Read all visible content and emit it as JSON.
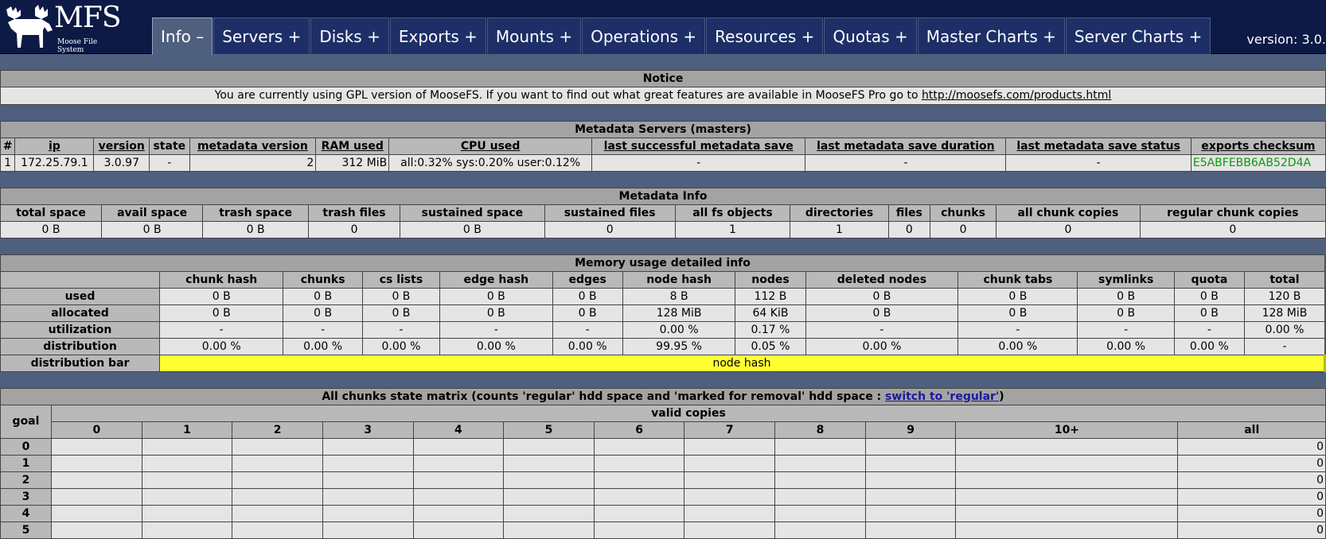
{
  "logo": {
    "text": "MFS",
    "subtitle": "Moose File System"
  },
  "tabs": [
    "Info –",
    "Servers +",
    "Disks +",
    "Exports +",
    "Mounts +",
    "Operations +",
    "Resources +",
    "Quotas +",
    "Master Charts +",
    "Server Charts +"
  ],
  "version_label": "version: 3.0.",
  "notice": {
    "title": "Notice",
    "text": "You are currently using GPL version of MooseFS. If you want to find out what great features are available in MooseFS Pro go to ",
    "link": "http://moosefs.com/products.html"
  },
  "masters": {
    "title": "Metadata Servers (masters)",
    "headers": [
      "#",
      "ip",
      "version",
      "state",
      "metadata version",
      "RAM used",
      "CPU used",
      "last successful metadata save",
      "last metadata save duration",
      "last metadata save status",
      "exports checksum"
    ],
    "row": [
      "1",
      "172.25.79.1",
      "3.0.97",
      "-",
      "2",
      "312 MiB",
      "all:0.32% sys:0.20% user:0.12%",
      "-",
      "-",
      "-",
      "E5ABFEBB6AB52D4A"
    ]
  },
  "metainfo": {
    "title": "Metadata Info",
    "headers": [
      "total space",
      "avail space",
      "trash space",
      "trash files",
      "sustained space",
      "sustained files",
      "all fs objects",
      "directories",
      "files",
      "chunks",
      "all chunk copies",
      "regular chunk copies"
    ],
    "row": [
      "0 B",
      "0 B",
      "0 B",
      "0",
      "0 B",
      "0",
      "1",
      "1",
      "0",
      "0",
      "0",
      "0"
    ]
  },
  "memory": {
    "title": "Memory usage detailed info",
    "headers": [
      "chunk hash",
      "chunks",
      "cs lists",
      "edge hash",
      "edges",
      "node hash",
      "nodes",
      "deleted nodes",
      "chunk tabs",
      "symlinks",
      "quota",
      "total"
    ],
    "rows": [
      {
        "label": "used",
        "cells": [
          "0 B",
          "0 B",
          "0 B",
          "0 B",
          "0 B",
          "8 B",
          "112 B",
          "0 B",
          "0 B",
          "0 B",
          "0 B",
          "120 B"
        ]
      },
      {
        "label": "allocated",
        "cells": [
          "0 B",
          "0 B",
          "0 B",
          "0 B",
          "0 B",
          "128 MiB",
          "64 KiB",
          "0 B",
          "0 B",
          "0 B",
          "0 B",
          "128 MiB"
        ]
      },
      {
        "label": "utilization",
        "cells": [
          "-",
          "-",
          "-",
          "-",
          "-",
          "0.00 %",
          "0.17 %",
          "-",
          "-",
          "-",
          "-",
          "0.00 %"
        ]
      },
      {
        "label": "distribution",
        "cells": [
          "0.00 %",
          "0.00 %",
          "0.00 %",
          "0.00 %",
          "0.00 %",
          "99.95 %",
          "0.05 %",
          "0.00 %",
          "0.00 %",
          "0.00 %",
          "0.00 %",
          "-"
        ]
      }
    ],
    "bar_label": "distribution bar",
    "bar_text": "node hash",
    "bar_fraction": 0.9995
  },
  "matrix": {
    "title": "All chunks state matrix (counts 'regular' hdd space and 'marked for removal' hdd space : ",
    "switch_link": "switch to 'regular'",
    "title_end": ")",
    "goal_label": "goal",
    "valid_label": "valid copies",
    "columns": [
      "0",
      "1",
      "2",
      "3",
      "4",
      "5",
      "6",
      "7",
      "8",
      "9",
      "10+",
      "all"
    ],
    "rows": [
      {
        "goal": "0",
        "all": "0"
      },
      {
        "goal": "1",
        "all": "0"
      },
      {
        "goal": "2",
        "all": "0"
      },
      {
        "goal": "3",
        "all": "0"
      },
      {
        "goal": "4",
        "all": "0"
      },
      {
        "goal": "5",
        "all": "0"
      }
    ]
  }
}
